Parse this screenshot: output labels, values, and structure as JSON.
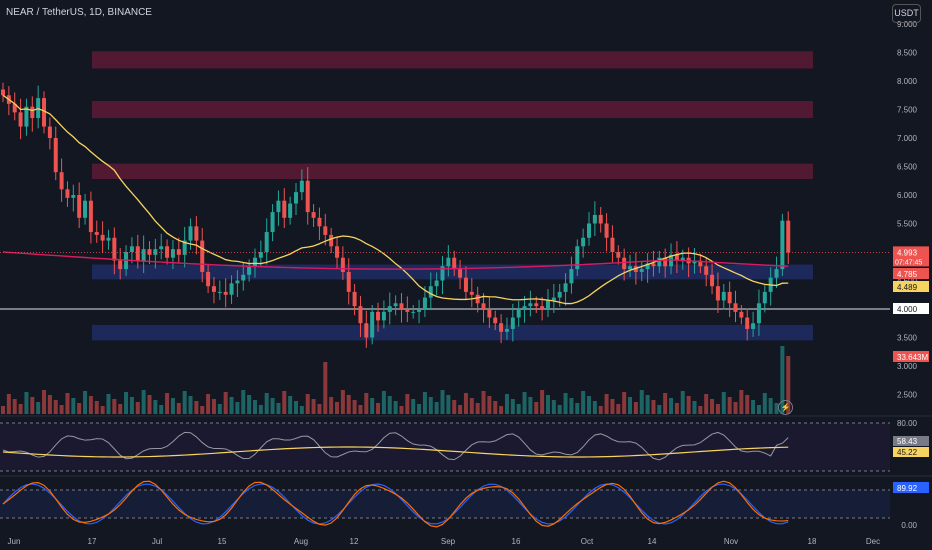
{
  "header": {
    "title": "NEAR / TetherUS, 1D, BINANCE",
    "currency": "USDT"
  },
  "colors": {
    "bg": "#131722",
    "up": "#26a69a",
    "down": "#ef5350",
    "ma_fast": "#f7d35f",
    "ma_slow": "#d81b60",
    "rsi": "#9598a1",
    "rsi_ma": "#f7d35f",
    "stoch_k": "#2962ff",
    "stoch_d": "#ff6d00",
    "zone_red": "#5a1a34",
    "zone_blue": "#1e2a5e"
  },
  "icons": {
    "lightning": "lightning-icon"
  },
  "chart_data": {
    "type": "candlestick",
    "price_axis": {
      "range": [
        2.0,
        9.0
      ],
      "ticks": [
        "9.000",
        "8.500",
        "8.000",
        "7.500",
        "7.000",
        "6.500",
        "6.000",
        "5.500",
        "5.000",
        "4.500",
        "4.000",
        "3.500",
        "3.000",
        "2.500"
      ]
    },
    "time_axis": {
      "labels": [
        "Jun",
        "17",
        "Jul",
        "15",
        "Aug",
        "12",
        "Sep",
        "16",
        "Oct",
        "14",
        "Nov",
        "18",
        "Dec"
      ]
    },
    "price_labels": [
      {
        "text": "4.993",
        "sub": "07:47:45",
        "kind": "last"
      },
      {
        "text": "4.785",
        "kind": "ma_slow"
      },
      {
        "text": "4.489",
        "kind": "ma_fast"
      },
      {
        "text": "4.000",
        "kind": "hline"
      },
      {
        "text": "33.643M",
        "kind": "volume"
      }
    ],
    "horizontal_line": 4.0,
    "zones": [
      {
        "from": 8.22,
        "to": 8.52,
        "kind": "resistance"
      },
      {
        "from": 7.35,
        "to": 7.65,
        "kind": "resistance"
      },
      {
        "from": 6.28,
        "to": 6.55,
        "kind": "resistance"
      },
      {
        "from": 4.52,
        "to": 4.78,
        "kind": "support"
      },
      {
        "from": 3.45,
        "to": 3.72,
        "kind": "support"
      }
    ],
    "closes": [
      7.75,
      7.6,
      7.45,
      7.2,
      7.55,
      7.35,
      7.7,
      7.2,
      7.0,
      6.4,
      6.1,
      5.95,
      6.0,
      5.6,
      5.9,
      5.35,
      5.3,
      5.2,
      5.25,
      4.85,
      4.7,
      5.0,
      5.1,
      4.85,
      5.05,
      4.95,
      5.05,
      5.1,
      4.9,
      5.05,
      4.95,
      5.2,
      5.45,
      5.2,
      4.65,
      4.4,
      4.3,
      4.3,
      4.25,
      4.45,
      4.5,
      4.6,
      4.75,
      4.9,
      5.0,
      5.35,
      5.7,
      5.9,
      5.6,
      5.85,
      6.05,
      6.25,
      5.7,
      5.6,
      5.45,
      5.3,
      5.1,
      4.9,
      4.65,
      4.3,
      4.05,
      3.75,
      3.5,
      3.95,
      3.8,
      3.95,
      4.05,
      4.1,
      4.0,
      3.95,
      3.95,
      4.0,
      4.2,
      4.4,
      4.5,
      4.75,
      4.9,
      4.7,
      4.55,
      4.3,
      4.25,
      4.1,
      4.0,
      3.85,
      3.75,
      3.6,
      3.65,
      3.85,
      4.0,
      4.05,
      4.1,
      4.05,
      4.0,
      4.15,
      4.2,
      4.3,
      4.45,
      4.7,
      5.1,
      5.25,
      5.5,
      5.65,
      5.5,
      5.25,
      5.0,
      4.9,
      4.7,
      4.75,
      4.65,
      4.7,
      4.8,
      4.75,
      4.9,
      4.75,
      4.95,
      4.85,
      4.9,
      4.8,
      4.85,
      4.75,
      4.6,
      4.4,
      4.15,
      4.3,
      4.1,
      3.95,
      3.85,
      3.65,
      3.75,
      4.1,
      4.3,
      4.55,
      4.7,
      5.55,
      4.99
    ],
    "volume": {
      "last": "33.643M"
    },
    "rsi": {
      "levels": [
        80,
        0
      ],
      "labels": [
        "80.00",
        "0.00"
      ],
      "value": "58.43",
      "ma_value": "45.22"
    },
    "stoch": {
      "value": "89.92"
    }
  }
}
